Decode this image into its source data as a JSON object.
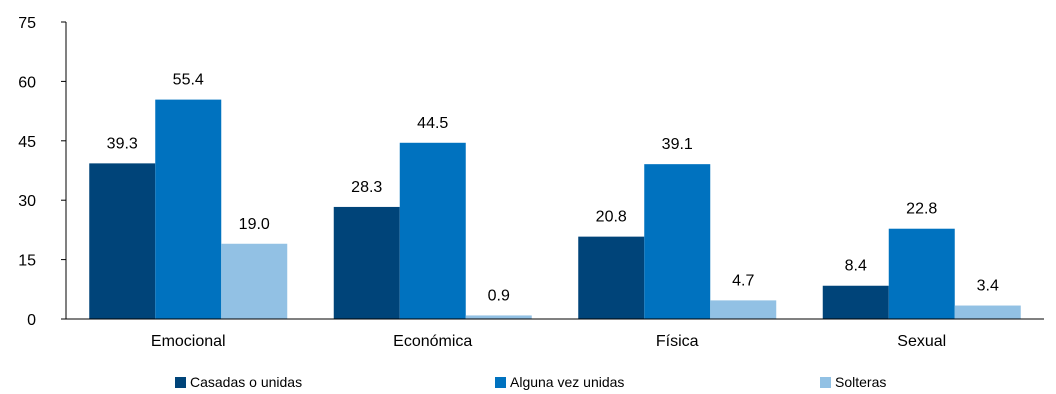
{
  "chart_data": {
    "type": "bar",
    "categories": [
      "Emocional",
      "Económica",
      "Física",
      "Sexual"
    ],
    "series": [
      {
        "name": "Casadas o unidas",
        "values": [
          39.3,
          28.3,
          20.8,
          8.4
        ],
        "color": "#004479"
      },
      {
        "name": "Alguna vez unidas",
        "values": [
          55.4,
          44.5,
          39.1,
          22.8
        ],
        "color": "#0072bf"
      },
      {
        "name": "Solteras",
        "values": [
          19.0,
          0.9,
          4.7,
          3.4
        ],
        "color": "#92c1e4"
      }
    ],
    "data_labels": [
      [
        "39.3",
        "28.3",
        "20.8",
        "8.4"
      ],
      [
        "55.4",
        "44.5",
        "39.1",
        "22.8"
      ],
      [
        "19.0",
        "0.9",
        "4.7",
        "3.4"
      ]
    ],
    "yticks": [
      "0",
      "15",
      "30",
      "45",
      "60",
      "75"
    ],
    "ylim": [
      0,
      75
    ],
    "grid": false,
    "legend_position": "bottom",
    "title": "",
    "xlabel": "",
    "ylabel": ""
  }
}
